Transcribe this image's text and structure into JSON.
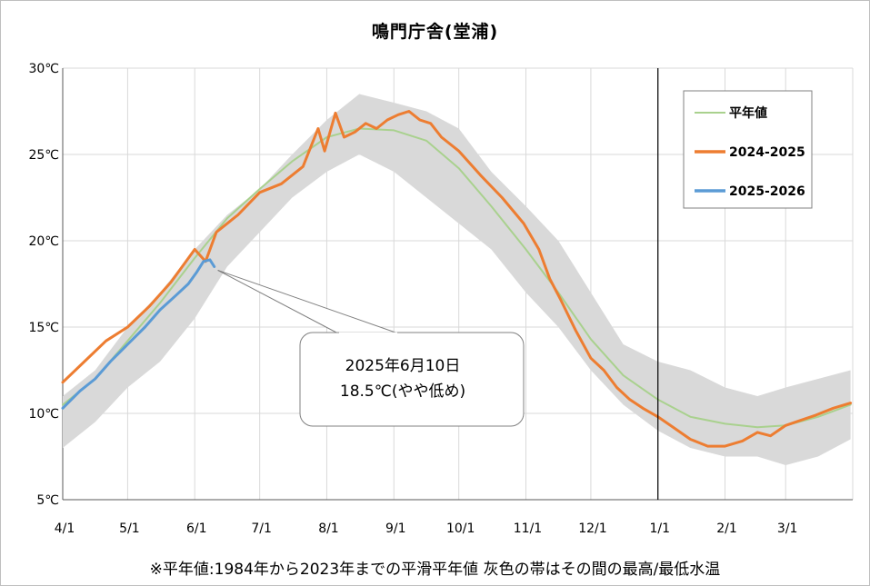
{
  "title": "鳴門庁舎(堂浦)",
  "footnote": "※平年値:1984年から2023年までの平滑平年値 灰色の帯はその間の最高/最低水温",
  "chart_data": {
    "type": "line",
    "title": "鳴門庁舎(堂浦)",
    "x_tick_labels": [
      "4/1",
      "5/1",
      "6/1",
      "7/1",
      "8/1",
      "9/1",
      "10/1",
      "11/1",
      "12/1",
      "1/1",
      "2/1",
      "3/1"
    ],
    "y_tick_labels": [
      "5℃",
      "10℃",
      "15℃",
      "20℃",
      "25℃",
      "30℃"
    ],
    "ylim": [
      5,
      30
    ],
    "xlim_days_from_apr1": [
      0,
      365
    ],
    "grid": true,
    "legend_position": "top-right",
    "legend": [
      "平年値",
      "2024-2025",
      "2025-2026"
    ],
    "band": {
      "name": "最高/最低水温",
      "color": "#d9d9d9",
      "x_days": [
        0,
        15,
        30,
        45,
        61,
        76,
        91,
        106,
        122,
        137,
        153,
        168,
        183,
        198,
        214,
        229,
        244,
        259,
        275,
        290,
        306,
        321,
        334,
        349,
        364
      ],
      "upper": [
        11.0,
        12.5,
        15.0,
        17.0,
        19.5,
        21.5,
        23.0,
        25.0,
        27.0,
        28.5,
        28.0,
        27.5,
        26.5,
        24.0,
        22.0,
        20.0,
        17.0,
        14.0,
        13.0,
        12.5,
        11.5,
        11.0,
        11.5,
        12.0,
        12.5
      ],
      "lower": [
        8.0,
        9.5,
        11.5,
        13.0,
        15.5,
        18.5,
        20.5,
        22.5,
        24.0,
        25.0,
        24.0,
        22.5,
        21.0,
        19.5,
        17.0,
        15.0,
        12.5,
        10.5,
        9.0,
        8.0,
        7.5,
        7.5,
        7.0,
        7.5,
        8.5
      ]
    },
    "series": [
      {
        "name": "平年値",
        "color": "#a9d18e",
        "x_days": [
          0,
          15,
          30,
          45,
          61,
          76,
          91,
          106,
          122,
          137,
          153,
          168,
          183,
          198,
          214,
          229,
          244,
          259,
          275,
          290,
          306,
          321,
          334,
          349,
          364
        ],
        "values": [
          10.5,
          12.0,
          14.2,
          16.4,
          19.0,
          21.3,
          23.0,
          24.6,
          26.0,
          26.5,
          26.4,
          25.8,
          24.2,
          22.0,
          19.5,
          17.0,
          14.3,
          12.2,
          10.8,
          9.8,
          9.4,
          9.2,
          9.3,
          9.8,
          10.5
        ]
      },
      {
        "name": "2024-2025",
        "color": "#ed7d31",
        "x_days": [
          0,
          10,
          20,
          30,
          40,
          50,
          61,
          66,
          71,
          81,
          91,
          101,
          111,
          118,
          121,
          126,
          130,
          135,
          140,
          145,
          150,
          155,
          160,
          165,
          170,
          175,
          183,
          193,
          203,
          213,
          220,
          225,
          230,
          237,
          244,
          250,
          256,
          262,
          268,
          275,
          282,
          290,
          298,
          306,
          314,
          321,
          327,
          334,
          341,
          348,
          356,
          364
        ],
        "values": [
          11.8,
          13.0,
          14.2,
          15.0,
          16.2,
          17.6,
          19.5,
          18.8,
          20.5,
          21.5,
          22.8,
          23.3,
          24.3,
          26.5,
          25.2,
          27.4,
          26.0,
          26.3,
          26.8,
          26.5,
          27.0,
          27.3,
          27.5,
          27.0,
          26.8,
          26.0,
          25.2,
          23.8,
          22.5,
          21.0,
          19.5,
          17.8,
          16.6,
          14.8,
          13.2,
          12.5,
          11.5,
          10.8,
          10.3,
          9.8,
          9.2,
          8.5,
          8.1,
          8.1,
          8.4,
          8.9,
          8.7,
          9.3,
          9.6,
          9.9,
          10.3,
          10.6
        ]
      },
      {
        "name": "2025-2026",
        "color": "#5b9bd5",
        "x_days": [
          0,
          8,
          15,
          22,
          30,
          38,
          45,
          52,
          58,
          62,
          65,
          68,
          70
        ],
        "values": [
          10.3,
          11.3,
          12.0,
          13.0,
          14.0,
          15.0,
          16.0,
          16.8,
          17.5,
          18.2,
          18.8,
          18.9,
          18.5
        ]
      }
    ],
    "annotation": {
      "lines": [
        "2025年6月10日",
        "18.5℃(やや低め)"
      ],
      "x_day": 70,
      "y_value": 18.5
    }
  }
}
